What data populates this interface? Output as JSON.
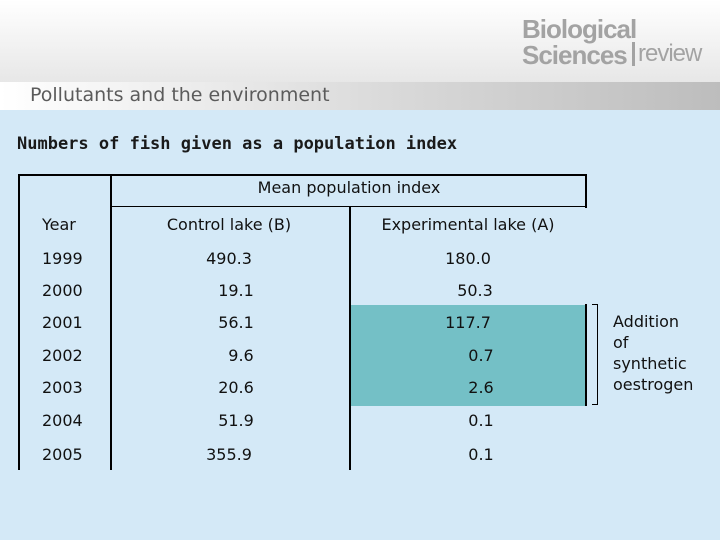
{
  "header": {
    "subtitle": "Pollutants and the environment",
    "logo": {
      "line1": "Biological",
      "line2": "Sciences",
      "line3": "review"
    }
  },
  "table_title": "Numbers of fish given as a population index",
  "table": {
    "group_header": "Mean population index",
    "columns": [
      "Year",
      "Control lake (B)",
      "Experimental lake (A)"
    ],
    "rows": [
      [
        "1999",
        "490.3",
        "180.0"
      ],
      [
        "2000",
        "19.1",
        "50.3"
      ],
      [
        "2001",
        "56.1",
        "117.7"
      ],
      [
        "2002",
        "9.6",
        "0.7"
      ],
      [
        "2003",
        "20.6",
        "2.6"
      ],
      [
        "2004",
        "51.9",
        "0.1"
      ],
      [
        "2005",
        "355.9",
        "0.1"
      ]
    ],
    "highlight_color": "#74c0c6"
  },
  "annotation": [
    "Addition",
    "of",
    "synthetic",
    "oestrogen"
  ]
}
